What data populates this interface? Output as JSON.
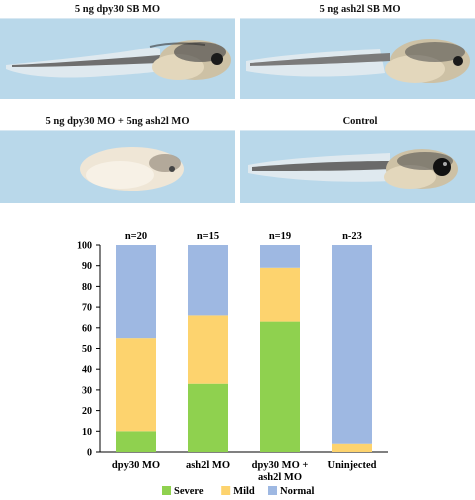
{
  "panels": [
    {
      "title": "5 ng dpy30 SB MO",
      "phenotype": "mild"
    },
    {
      "title": "5 ng ash2l SB MO",
      "phenotype": "mild"
    },
    {
      "title": "5 ng dpy30 MO + 5ng ash2l MO",
      "phenotype": "severe"
    },
    {
      "title": "Control",
      "phenotype": "normal"
    }
  ],
  "chart_data": {
    "type": "bar",
    "stacked": true,
    "categories": [
      [
        "dpy30 MO"
      ],
      [
        "ash2l MO"
      ],
      [
        "dpy30 MO +",
        "ash2l MO"
      ],
      [
        "Uninjected"
      ]
    ],
    "n_labels": [
      "n=20",
      "n=15",
      "n=19",
      "n-23"
    ],
    "series": [
      {
        "name": "Severe",
        "color": "#8fd14f",
        "values": [
          10,
          33,
          63,
          0
        ]
      },
      {
        "name": "Mild",
        "color": "#fdd36e",
        "values": [
          45,
          33,
          26,
          4
        ]
      },
      {
        "name": "Normal",
        "color": "#9eb8e2",
        "values": [
          45,
          34,
          11,
          96
        ]
      }
    ],
    "ylim": [
      0,
      100
    ],
    "yticks": [
      0,
      10,
      20,
      30,
      40,
      50,
      60,
      70,
      80,
      90,
      100
    ],
    "grid": false,
    "legend_position": "bottom"
  }
}
